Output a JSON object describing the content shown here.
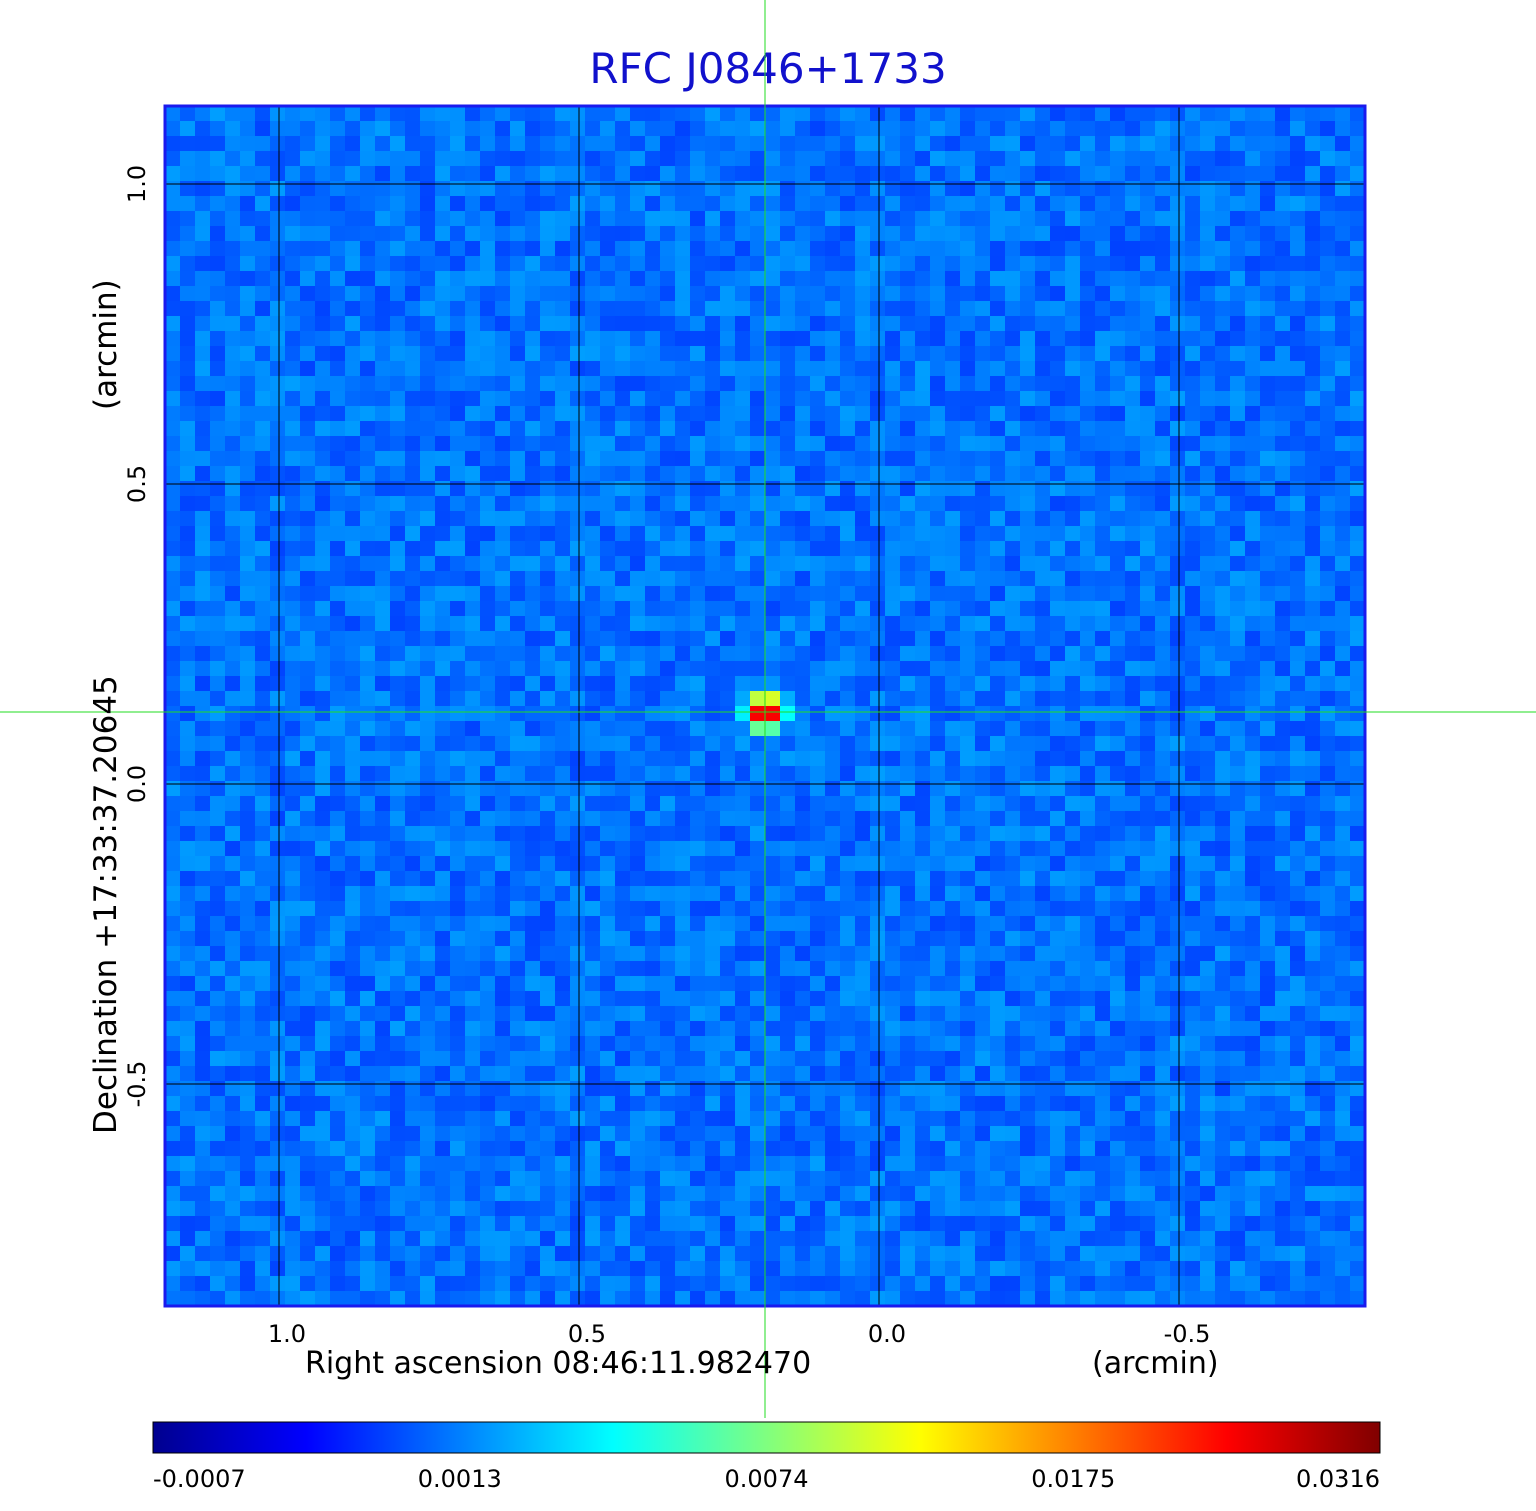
{
  "chart_data": {
    "type": "heatmap",
    "title": "RFC J0846+1733",
    "xlabel": "Right ascension  08:46:11.982470",
    "x_unit": "(arcmin)",
    "ylabel": "Declination  +17:33:37.20645",
    "y_unit": "(arcmin)",
    "x_ticks": [
      "1.0",
      "0.5",
      "0.0",
      "-0.5"
    ],
    "x_tick_values": [
      1.0,
      0.5,
      0.0,
      -0.5
    ],
    "y_ticks": [
      "1.0",
      "0.5",
      "0.0",
      "-0.5"
    ],
    "y_tick_values": [
      1.0,
      0.5,
      0.0,
      -0.5
    ],
    "xlim": [
      1.19,
      -0.81
    ],
    "ylim": [
      -0.87,
      1.13
    ],
    "grid": true,
    "crosshair": {
      "x": 0.19,
      "y": 0.12
    },
    "source_peak": {
      "x": 0.19,
      "y": 0.12,
      "value": 0.0316
    },
    "colorbar": {
      "colormap": "jet",
      "labels": [
        "-0.0007",
        "0.0013",
        "0.0074",
        "0.0175",
        "0.0316"
      ],
      "values": [
        -0.0007,
        0.0013,
        0.0074,
        0.0175,
        0.0316
      ]
    },
    "colors": {
      "title": "#1111cc",
      "crosshair": "#22dd22",
      "grid": "#000000",
      "frame": "#1a1aee"
    }
  }
}
